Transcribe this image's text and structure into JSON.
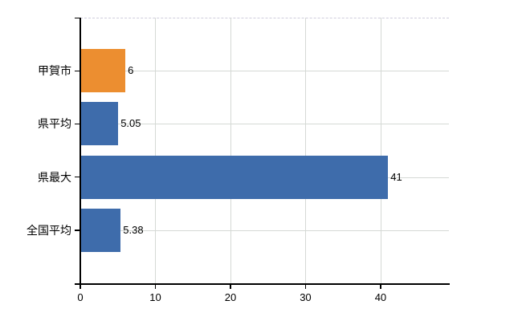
{
  "chart_data": {
    "type": "bar",
    "orientation": "horizontal",
    "title": "",
    "categories": [
      "甲賀市",
      "県平均",
      "県最大",
      "全国平均"
    ],
    "values": [
      6,
      5.05,
      41,
      5.38
    ],
    "value_labels": [
      "6",
      "5.05",
      "41",
      "5.38"
    ],
    "bar_colors": [
      "#ec8e30",
      "#3e6cab",
      "#3e6cab",
      "#3e6cab"
    ],
    "xlim": [
      0,
      49.1
    ],
    "xticks": [
      0,
      10,
      20,
      30,
      40
    ],
    "xtick_labels": [
      "0",
      "10",
      "20",
      "30",
      "40"
    ],
    "grid": true,
    "legend": "none",
    "colors": {
      "bar_highlight": "#ec8e30",
      "bar_default": "#3e6cab",
      "grid": "#d5d9d5",
      "axis": "#000000",
      "text": "#000000"
    }
  }
}
